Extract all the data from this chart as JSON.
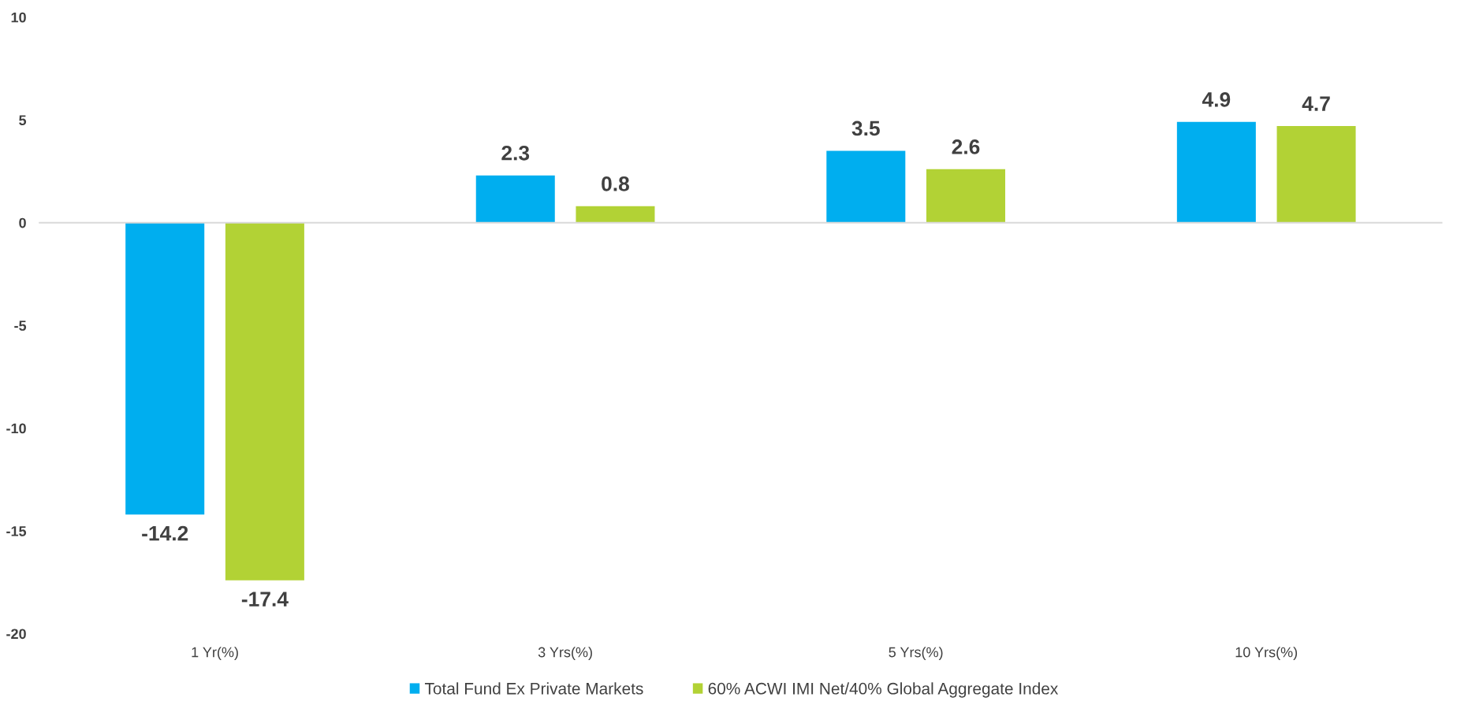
{
  "chart_data": {
    "type": "bar",
    "categories": [
      "1 Yr(%)",
      "3 Yrs(%)",
      "5 Yrs(%)",
      "10 Yrs(%)"
    ],
    "series": [
      {
        "name": "Total Fund Ex Private Markets",
        "color": "#00aeef",
        "values": [
          -14.2,
          2.3,
          3.5,
          4.9
        ]
      },
      {
        "name": "60% ACWI IMI Net/40% Global Aggregate Index",
        "color": "#b2d235",
        "values": [
          -17.4,
          0.8,
          2.6,
          4.7
        ]
      }
    ],
    "ylim": [
      -20,
      10
    ],
    "yticks": [
      -20,
      -15,
      -10,
      -5,
      0,
      5,
      10
    ],
    "legend": "bottom",
    "data_labels": true
  }
}
